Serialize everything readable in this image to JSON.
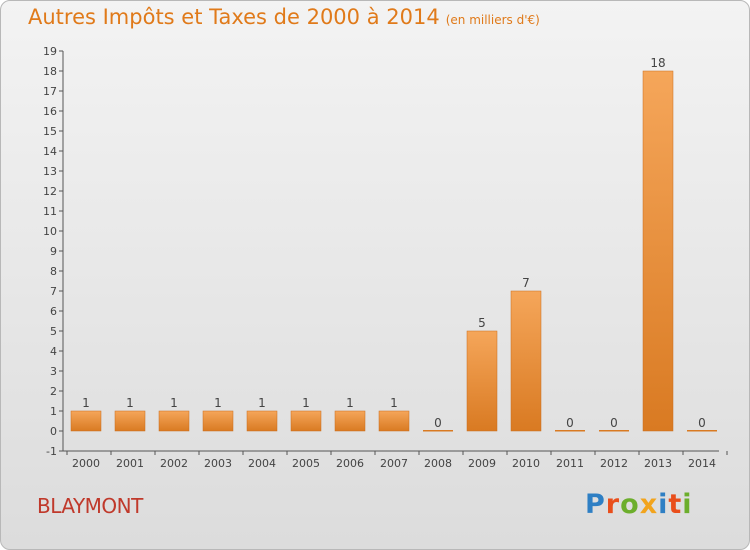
{
  "title": "Autres Impôts et Taxes de 2000 à 2014",
  "unit": "(en milliers d'€)",
  "commune": "BLAYMONT",
  "brand": {
    "letters": [
      "P",
      "r",
      "o",
      "x",
      "i",
      "t",
      "i"
    ],
    "colors": [
      "#2e7fc4",
      "#e94e1b",
      "#6cae2c",
      "#f2a41d",
      "#2e7fc4",
      "#e94e1b",
      "#6cae2c"
    ]
  },
  "colors": {
    "bar_light": "#f5a65a",
    "bar_dark": "#d97a22",
    "axis": "#555555",
    "title": "#e07a1a"
  },
  "chart_data": {
    "type": "bar",
    "categories": [
      "2000",
      "2001",
      "2002",
      "2003",
      "2004",
      "2005",
      "2006",
      "2007",
      "2008",
      "2009",
      "2010",
      "2011",
      "2012",
      "2013",
      "2014"
    ],
    "values": [
      1,
      1,
      1,
      1,
      1,
      1,
      1,
      1,
      0,
      5,
      7,
      0,
      0,
      18,
      0
    ],
    "data_labels": [
      "1",
      "1",
      "1",
      "1",
      "1",
      "1",
      "1",
      "1",
      "0",
      "5",
      "7",
      "0",
      "0",
      "18",
      "0"
    ],
    "yticks": [
      "-1",
      "0",
      "1",
      "2",
      "3",
      "4",
      "5",
      "6",
      "7",
      "8",
      "9",
      "10",
      "11",
      "12",
      "13",
      "14",
      "15",
      "16",
      "17",
      "18",
      "19"
    ],
    "ylim": [
      -1,
      19
    ],
    "grid": false,
    "legend": "none"
  }
}
